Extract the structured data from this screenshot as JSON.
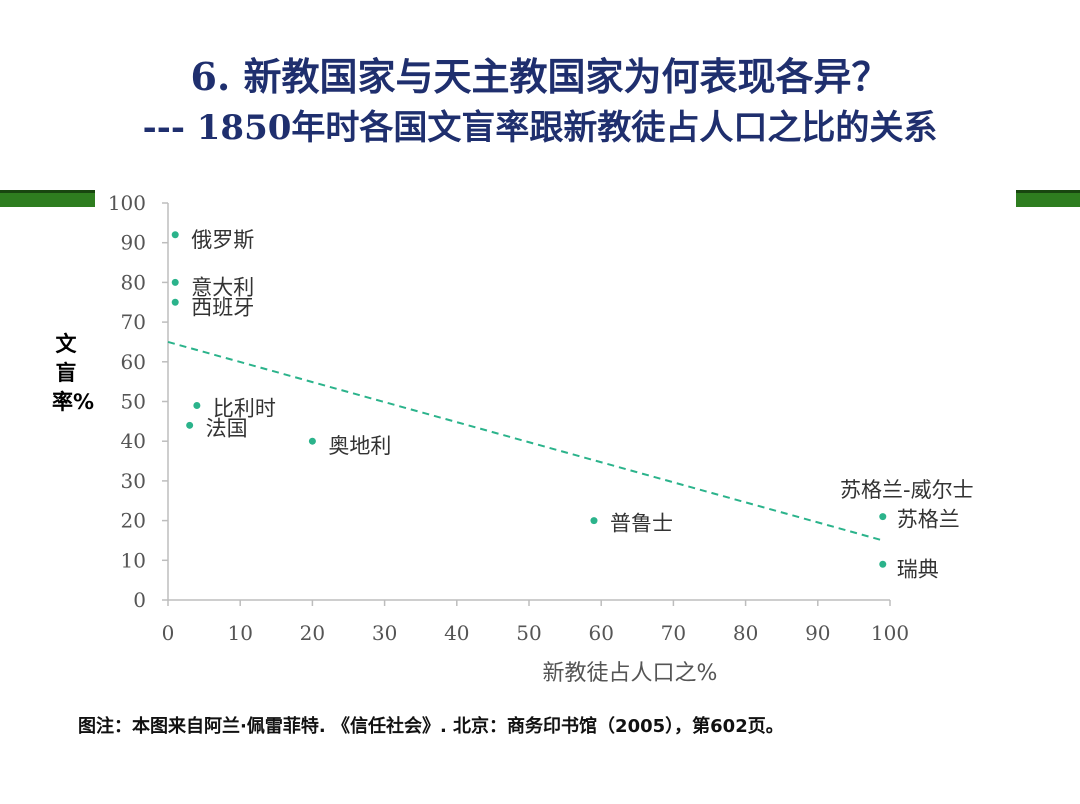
{
  "title": {
    "line1": "6. 新教国家与天主教国家为何表现各异？",
    "line2": "--- 1850年时各国文盲率跟新教徒占人口之比的关系"
  },
  "footnote": "图注：本图来自阿兰·佩雷菲特. 《信任社会》. 北京：商务印书馆（2005），第602页。",
  "colors": {
    "title": "#1f2f6e",
    "points": "#2bb38b",
    "trendline": "#2bb38b",
    "bar": "#2e7d1f"
  },
  "chart_data": {
    "type": "scatter",
    "xlabel": "新教徒占人口之%",
    "ylabel": "文盲率%",
    "xlim": [
      0,
      100
    ],
    "ylim": [
      0,
      100
    ],
    "xticks": [
      0,
      10,
      20,
      30,
      40,
      50,
      60,
      70,
      80,
      90,
      100
    ],
    "yticks": [
      0,
      10,
      20,
      30,
      40,
      50,
      60,
      70,
      80,
      90,
      100
    ],
    "grid": false,
    "points": [
      {
        "label": "俄罗斯",
        "x": 1,
        "y": 92
      },
      {
        "label": "意大利",
        "x": 1,
        "y": 80
      },
      {
        "label": "西班牙",
        "x": 1,
        "y": 75
      },
      {
        "label": "比利时",
        "x": 4,
        "y": 49
      },
      {
        "label": "法国",
        "x": 3,
        "y": 44
      },
      {
        "label": "奥地利",
        "x": 20,
        "y": 40
      },
      {
        "label": "普鲁士",
        "x": 59,
        "y": 20
      },
      {
        "label": "苏格兰",
        "x": 99,
        "y": 21
      },
      {
        "label": "瑞典",
        "x": 99,
        "y": 9
      }
    ],
    "annotations": [
      "苏格兰-威尔士"
    ],
    "trendline": {
      "x": [
        0,
        99
      ],
      "y": [
        65,
        15
      ],
      "style": "dashed"
    }
  }
}
